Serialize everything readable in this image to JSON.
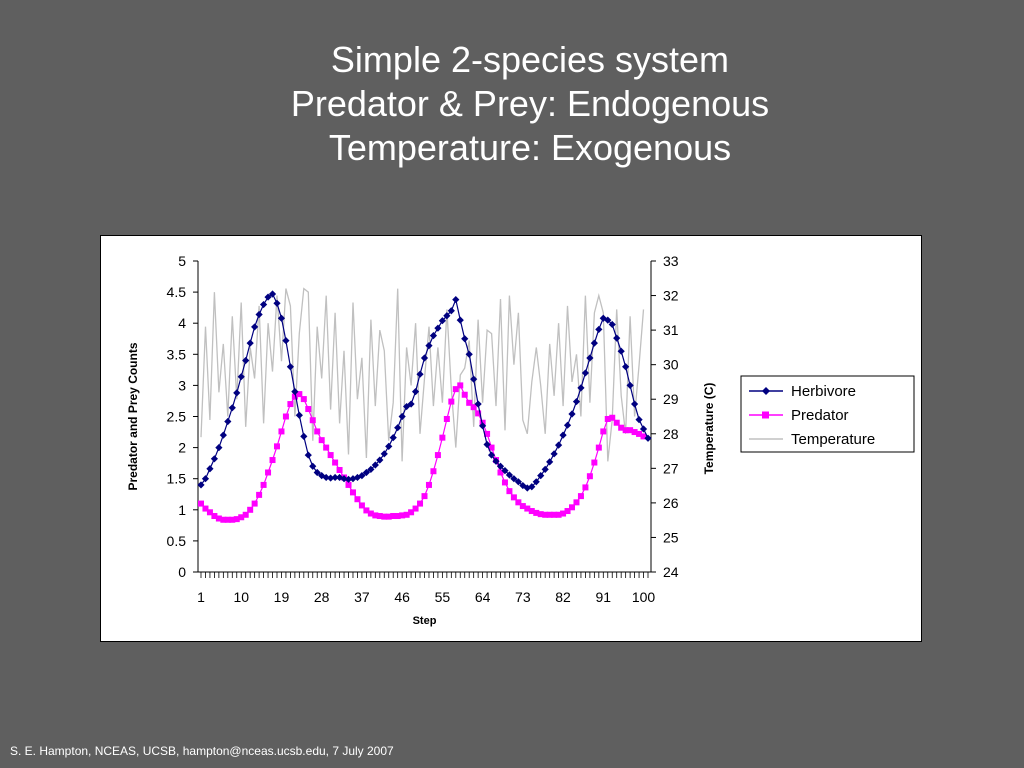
{
  "slide": {
    "title_lines": [
      "Simple 2-species system",
      "Predator & Prey: Endogenous",
      "Temperature: Exogenous"
    ],
    "footer": "S. E. Hampton, NCEAS, UCSB, hampton@nceas.ucsb.edu, 7 July 2007"
  },
  "chart_data": {
    "type": "line",
    "title": "",
    "xlabel": "Step",
    "ylabel": "Predator and Prey Counts",
    "y2label": "Temperature (C)",
    "ylim": [
      0,
      5
    ],
    "y2lim": [
      24,
      33
    ],
    "yticks": [
      "0",
      "0.5",
      "1",
      "1.5",
      "2",
      "2.5",
      "3",
      "3.5",
      "4",
      "4.5",
      "5"
    ],
    "y2ticks": [
      "24",
      "25",
      "26",
      "27",
      "28",
      "29",
      "30",
      "31",
      "32",
      "33"
    ],
    "xticks": [
      1,
      10,
      19,
      28,
      37,
      46,
      55,
      64,
      73,
      82,
      91,
      100
    ],
    "legend_position": "right",
    "grid": false,
    "series": [
      {
        "name": "Herbivore",
        "axis": "left",
        "color": "#000080",
        "marker": "diamond",
        "values": [
          1.4,
          1.5,
          1.66,
          1.82,
          2.0,
          2.2,
          2.42,
          2.64,
          2.88,
          3.14,
          3.4,
          3.68,
          3.94,
          4.14,
          4.3,
          4.42,
          4.47,
          4.32,
          4.08,
          3.72,
          3.3,
          2.9,
          2.52,
          2.18,
          1.88,
          1.7,
          1.6,
          1.55,
          1.52,
          1.51,
          1.52,
          1.52,
          1.5,
          1.49,
          1.5,
          1.52,
          1.55,
          1.6,
          1.65,
          1.72,
          1.8,
          1.9,
          2.02,
          2.16,
          2.32,
          2.5,
          2.66,
          2.7,
          2.9,
          3.18,
          3.44,
          3.64,
          3.8,
          3.92,
          4.04,
          4.12,
          4.2,
          4.38,
          4.05,
          3.75,
          3.5,
          3.1,
          2.7,
          2.35,
          2.05,
          1.88,
          1.78,
          1.7,
          1.63,
          1.56,
          1.5,
          1.45,
          1.39,
          1.35,
          1.37,
          1.45,
          1.55,
          1.65,
          1.77,
          1.9,
          2.04,
          2.2,
          2.36,
          2.54,
          2.74,
          2.96,
          3.2,
          3.44,
          3.68,
          3.9,
          4.08,
          4.05,
          3.98,
          3.76,
          3.55,
          3.3,
          3.0,
          2.7,
          2.45,
          2.3,
          2.15
        ]
      },
      {
        "name": "Predator",
        "axis": "left",
        "color": "#ff00ff",
        "marker": "square",
        "values": [
          1.1,
          1.02,
          0.96,
          0.9,
          0.86,
          0.84,
          0.84,
          0.84,
          0.85,
          0.88,
          0.92,
          1.0,
          1.1,
          1.24,
          1.4,
          1.6,
          1.8,
          2.02,
          2.26,
          2.5,
          2.7,
          2.82,
          2.86,
          2.78,
          2.62,
          2.44,
          2.26,
          2.12,
          2.0,
          1.88,
          1.76,
          1.64,
          1.52,
          1.4,
          1.28,
          1.17,
          1.07,
          0.99,
          0.94,
          0.91,
          0.9,
          0.89,
          0.89,
          0.9,
          0.9,
          0.91,
          0.92,
          0.96,
          1.02,
          1.1,
          1.22,
          1.4,
          1.62,
          1.88,
          2.16,
          2.46,
          2.74,
          2.94,
          3.0,
          2.85,
          2.72,
          2.65,
          2.55,
          2.4,
          2.22,
          2.0,
          1.8,
          1.6,
          1.44,
          1.3,
          1.2,
          1.12,
          1.06,
          1.02,
          0.98,
          0.95,
          0.93,
          0.92,
          0.92,
          0.92,
          0.92,
          0.94,
          0.98,
          1.04,
          1.12,
          1.22,
          1.36,
          1.54,
          1.76,
          2.0,
          2.26,
          2.46,
          2.48,
          2.4,
          2.32,
          2.28,
          2.28,
          2.25,
          2.22,
          2.18
        ]
      },
      {
        "name": "Temperature",
        "axis": "right",
        "color": "#c0c0c0",
        "marker": "none",
        "values": [
          27.9,
          31.1,
          28.4,
          32.1,
          29.2,
          30.6,
          28.5,
          31.4,
          29.0,
          31.8,
          28.2,
          30.5,
          29.6,
          31.7,
          28.3,
          31.2,
          29.8,
          32.0,
          30.1,
          32.2,
          31.7,
          28.5,
          30.9,
          32.2,
          32.1,
          27.8,
          31.1,
          29.6,
          32.0,
          28.7,
          31.5,
          28.3,
          30.4,
          27.4,
          31.8,
          29.0,
          30.2,
          27.3,
          31.3,
          28.8,
          31.0,
          30.4,
          27.8,
          28.9,
          32.2,
          27.2,
          30.5,
          29.4,
          31.2,
          28.0,
          29.6,
          31.1,
          28.8,
          30.5,
          28.9,
          31.6,
          29.3,
          27.6,
          29.7,
          29.9,
          30.7,
          28.2,
          31.3,
          28.9,
          31.0,
          30.9,
          28.8,
          31.9,
          28.1,
          32.0,
          30.0,
          31.5,
          28.4,
          28.0,
          29.5,
          30.5,
          29.4,
          28.0,
          30.6,
          29.1,
          31.2,
          28.8,
          31.7,
          29.5,
          30.3,
          28.5,
          32.0,
          28.9,
          31.5,
          32.0,
          31.5,
          27.2,
          28.4,
          31.6,
          29.1,
          28.0,
          31.4,
          28.5,
          30.0,
          31.6
        ]
      }
    ]
  }
}
